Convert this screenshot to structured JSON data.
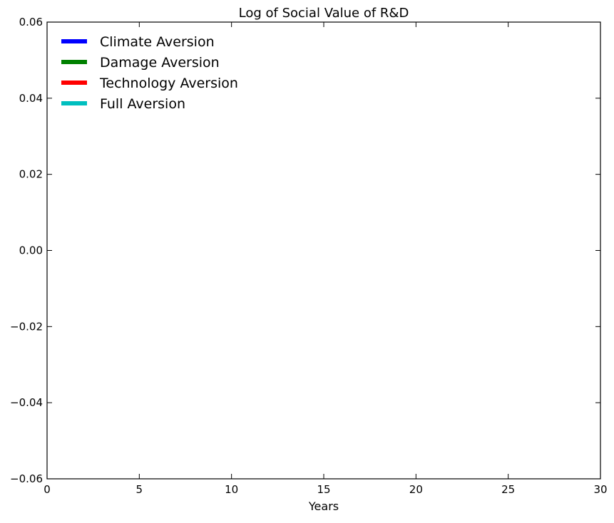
{
  "chart_data": {
    "type": "line",
    "title": "Log of Social Value of R&D",
    "xlabel": "Years",
    "ylabel": "",
    "xlim": [
      0,
      30
    ],
    "ylim": [
      -0.06,
      0.06
    ],
    "x_ticks": [
      0,
      5,
      10,
      15,
      20,
      25,
      30
    ],
    "y_ticks": [
      -0.06,
      -0.04,
      -0.02,
      0.0,
      0.02,
      0.04,
      0.06
    ],
    "x_tick_labels": [
      "0",
      "5",
      "10",
      "15",
      "20",
      "25",
      "30"
    ],
    "y_tick_labels": [
      "−0.06",
      "−0.04",
      "−0.02",
      "0.00",
      "0.02",
      "0.04",
      "0.06"
    ],
    "grid": false,
    "legend_position": "top-left",
    "series": [
      {
        "name": "Climate Aversion",
        "color": "#0000ff",
        "x": [],
        "y": []
      },
      {
        "name": "Damage Aversion",
        "color": "#008000",
        "x": [],
        "y": []
      },
      {
        "name": "Technology Aversion",
        "color": "#ff0000",
        "x": [],
        "y": []
      },
      {
        "name": "Full Aversion",
        "color": "#00bfbf",
        "x": [],
        "y": []
      }
    ]
  }
}
